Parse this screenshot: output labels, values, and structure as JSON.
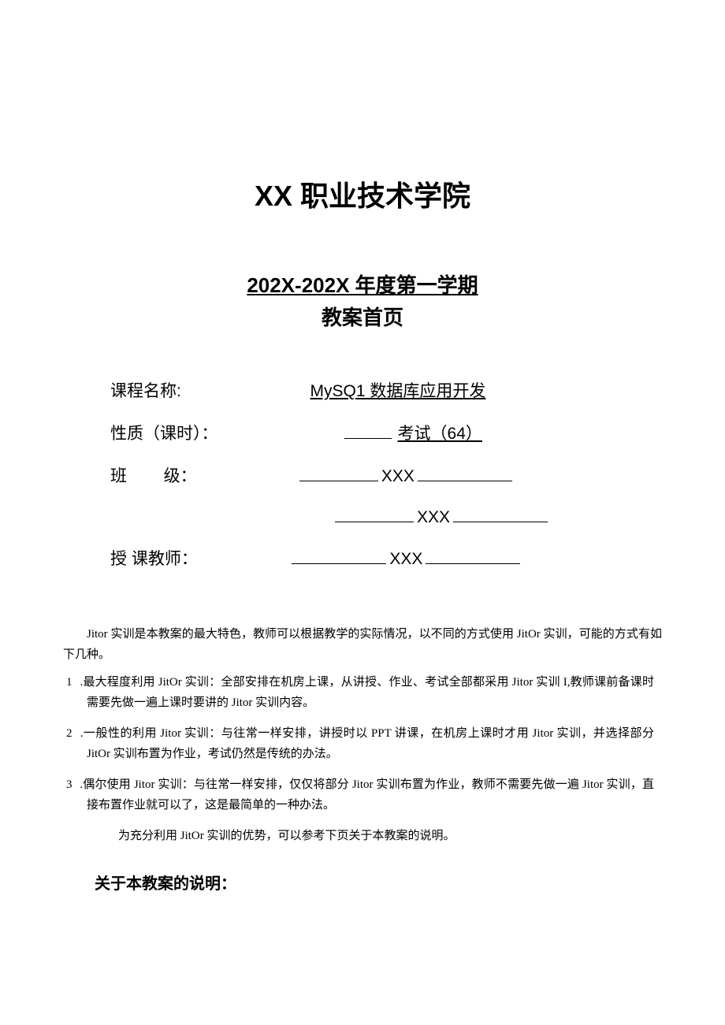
{
  "header": {
    "title": "XX 职业技术学院",
    "subtitle_line1": "202X-202X 年度第一学期",
    "subtitle_line2": "教案首页"
  },
  "info": {
    "course_name_label": "课程名称:",
    "course_name_value": "MySQ1 数据库应用开发",
    "nature_label": "性质（课时）：",
    "nature_value": "考试（64）",
    "class_label": "班        级：",
    "class_value1": "XXX",
    "class_value2": "XXX",
    "teacher_label": "授 课教师：",
    "teacher_value": "XXX"
  },
  "body": {
    "intro": "Jitor 实训是本教案的最大特色，教师可以根据教学的实际情况，以不同的方式使用 JitOr 实训，可能的方式有如下几种。",
    "items": [
      {
        "num": "1",
        "text": " .最大程度利用 JitOr 实训：全部安排在机房上课，从讲授、作业、考试全部都采用 Jitor 实训 I,教师课前备课时需要先做一遍上课时要讲的 Jitor 实训内容。"
      },
      {
        "num": "2",
        "text": " .一般性的利用 Jitor 实训：与往常一样安排，讲授时以 PPT 讲课，在机房上课时才用 Jitor 实训，并选择部分 JitOr 实训布置为作业，考试仍然是传统的办法。"
      },
      {
        "num": "3",
        "text": " .偶尔使用 Jitor 实训：与往常一样安排，仅仅将部分 Jitor 实训布置为作业，教师不需要先做一遍 Jitor 实训，直接布置作业就可以了，这是最简单的一种办法。"
      }
    ],
    "closing": "为充分利用 JitOr 实训的优势，可以参考下页关于本教案的说明。",
    "section_heading": "关于本教案的说明："
  },
  "style": {
    "background": "#ffffff",
    "text_color": "#000000",
    "title_fontsize": 36,
    "subtitle_fontsize": 26,
    "info_fontsize": 21,
    "body_fontsize": 15,
    "heading_fontsize": 20
  }
}
